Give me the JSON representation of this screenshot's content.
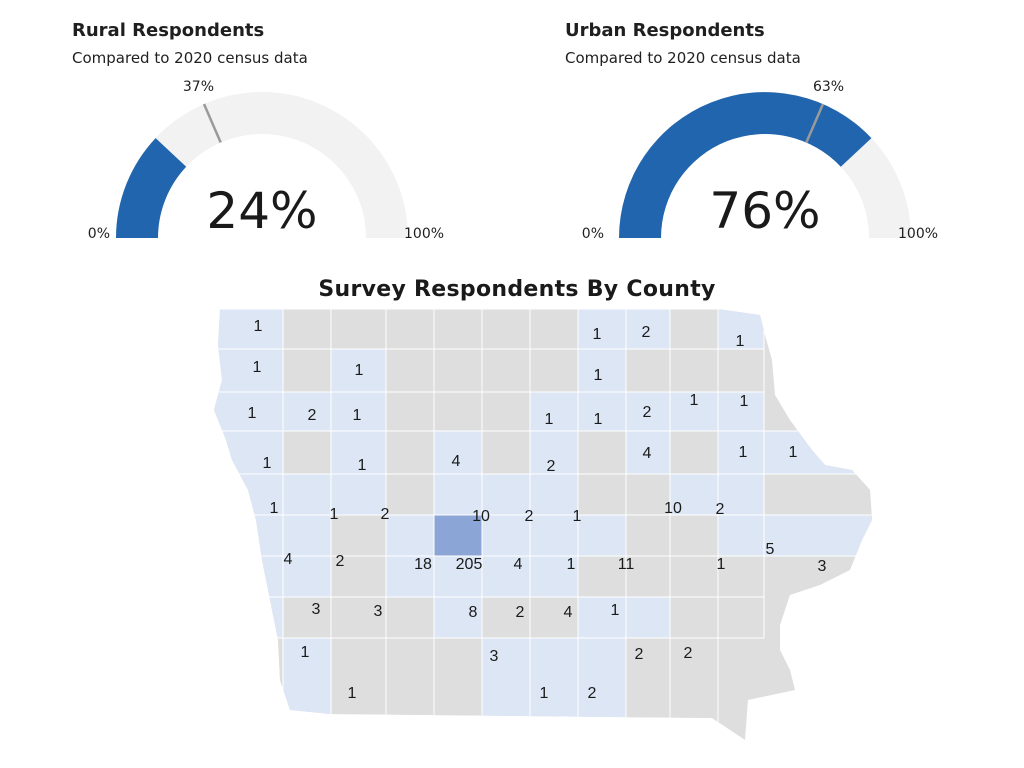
{
  "chart_data": [
    {
      "type": "gauge",
      "title": "Rural Respondents",
      "subtitle": "Compared to 2020 census data",
      "value": 24,
      "value_label": "24%",
      "reference": 37,
      "reference_label": "37%",
      "min_label": "0%",
      "max_label": "100%",
      "range": [
        0,
        100
      ]
    },
    {
      "type": "gauge",
      "title": "Urban Respondents",
      "subtitle": "Compared to 2020 census data",
      "value": 76,
      "value_label": "76%",
      "reference": 63,
      "reference_label": "63%",
      "min_label": "0%",
      "max_label": "100%",
      "range": [
        0,
        100
      ]
    },
    {
      "type": "heatmap",
      "title": "Survey Respondents By County",
      "county_counts": [
        "1",
        "2",
        "1",
        "1",
        "1",
        "1",
        "1",
        "1",
        "2",
        "1",
        "1",
        "1",
        "2",
        "1",
        "1",
        "1",
        "1",
        "4",
        "2",
        "4",
        "1",
        "1",
        "1",
        "1",
        "2",
        "10",
        "2",
        "1",
        "10",
        "2",
        "4",
        "2",
        "18",
        "205",
        "4",
        "1",
        "11",
        "1",
        "5",
        "3",
        "3",
        "3",
        "8",
        "2",
        "4",
        "1",
        "1",
        "3",
        "2",
        "2",
        "1",
        "1",
        "2"
      ]
    }
  ],
  "colors": {
    "gauge_fill": "#2065ad",
    "gauge_track": "#f2f2f2",
    "gauge_reference_tick": "#9a9a9a",
    "county_none": "#dedede",
    "county_some": "#dce6f5",
    "county_max": "#8ba6d6",
    "county_border": "#ffffff"
  }
}
